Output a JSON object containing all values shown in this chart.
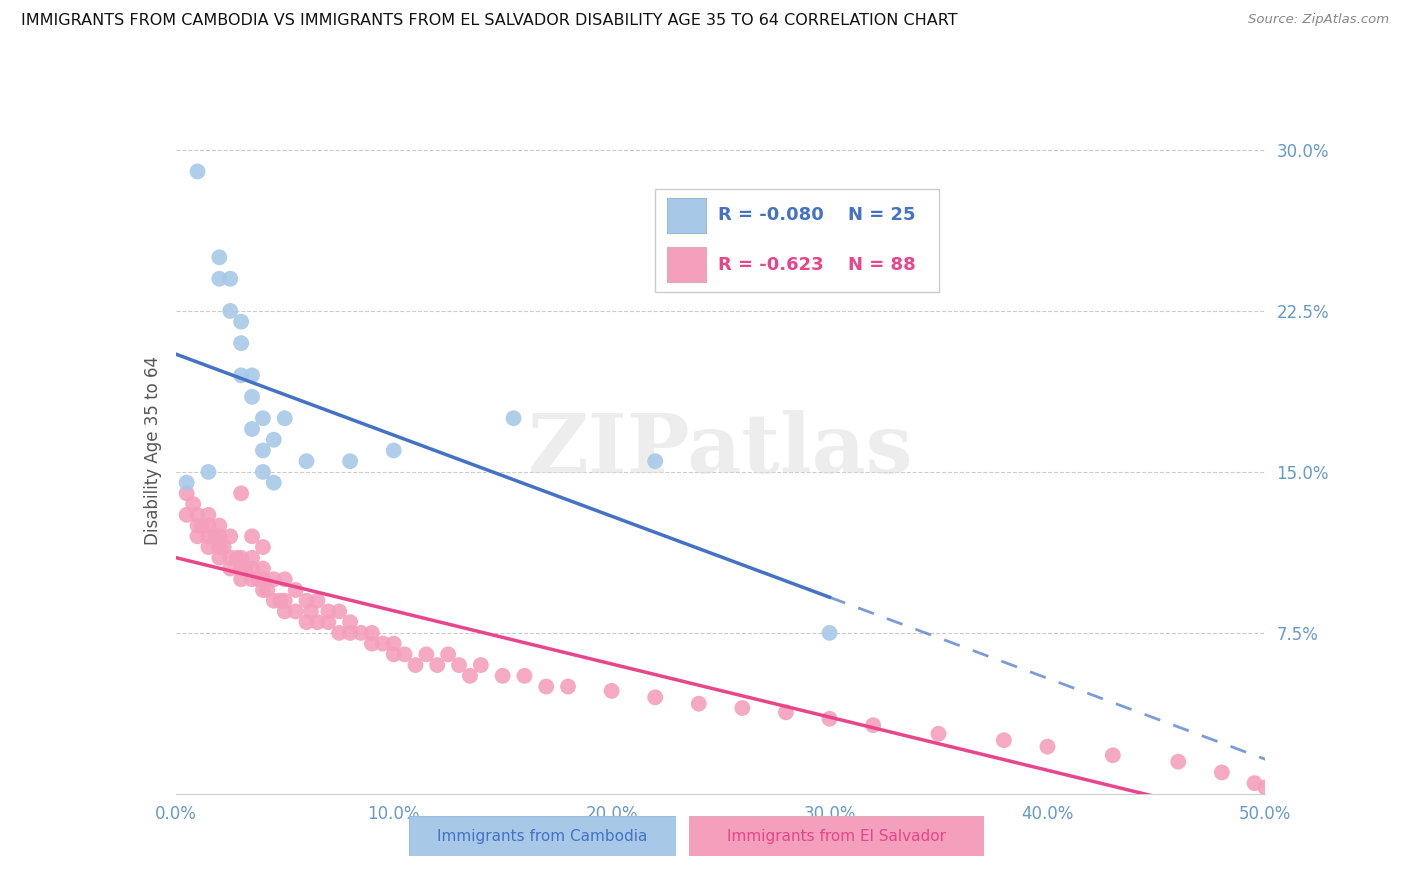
{
  "title": "IMMIGRANTS FROM CAMBODIA VS IMMIGRANTS FROM EL SALVADOR DISABILITY AGE 35 TO 64 CORRELATION CHART",
  "source": "Source: ZipAtlas.com",
  "ylabel": "Disability Age 35 to 64",
  "xlim": [
    0.0,
    0.5
  ],
  "ylim": [
    0.0,
    0.32
  ],
  "xticks": [
    0.0,
    0.1,
    0.2,
    0.3,
    0.4,
    0.5
  ],
  "xticklabels": [
    "0.0%",
    "10.0%",
    "20.0%",
    "30.0%",
    "40.0%",
    "50.0%"
  ],
  "yticks_right": [
    0.075,
    0.15,
    0.225,
    0.3
  ],
  "ytick_labels_right": [
    "7.5%",
    "15.0%",
    "22.5%",
    "30.0%"
  ],
  "legend_R1": "-0.080",
  "legend_N1": "25",
  "legend_R2": "-0.623",
  "legend_N2": "88",
  "color_cambodia": "#a8c8e8",
  "color_el_salvador": "#f4a0bc",
  "color_line_cambodia": "#4472c4",
  "color_line_el_salvador": "#e8458a",
  "color_axis": "#6699cc",
  "watermark": "ZIPatlas",
  "cambodia_x": [
    0.005,
    0.01,
    0.015,
    0.02,
    0.02,
    0.025,
    0.025,
    0.03,
    0.03,
    0.03,
    0.035,
    0.035,
    0.035,
    0.04,
    0.04,
    0.04,
    0.045,
    0.045,
    0.05,
    0.06,
    0.08,
    0.1,
    0.155,
    0.22,
    0.3
  ],
  "cambodia_y": [
    0.145,
    0.29,
    0.15,
    0.24,
    0.25,
    0.225,
    0.24,
    0.195,
    0.21,
    0.22,
    0.17,
    0.185,
    0.195,
    0.15,
    0.16,
    0.175,
    0.145,
    0.165,
    0.175,
    0.155,
    0.155,
    0.16,
    0.175,
    0.155,
    0.075
  ],
  "el_salvador_x": [
    0.005,
    0.005,
    0.008,
    0.01,
    0.01,
    0.01,
    0.012,
    0.015,
    0.015,
    0.015,
    0.015,
    0.018,
    0.02,
    0.02,
    0.02,
    0.02,
    0.022,
    0.025,
    0.025,
    0.025,
    0.028,
    0.03,
    0.03,
    0.03,
    0.03,
    0.032,
    0.035,
    0.035,
    0.035,
    0.035,
    0.038,
    0.04,
    0.04,
    0.04,
    0.04,
    0.042,
    0.045,
    0.045,
    0.048,
    0.05,
    0.05,
    0.05,
    0.055,
    0.055,
    0.06,
    0.06,
    0.062,
    0.065,
    0.065,
    0.07,
    0.07,
    0.075,
    0.075,
    0.08,
    0.08,
    0.085,
    0.09,
    0.09,
    0.095,
    0.1,
    0.1,
    0.105,
    0.11,
    0.115,
    0.12,
    0.125,
    0.13,
    0.135,
    0.14,
    0.15,
    0.16,
    0.17,
    0.18,
    0.2,
    0.22,
    0.24,
    0.26,
    0.28,
    0.3,
    0.32,
    0.35,
    0.38,
    0.4,
    0.43,
    0.46,
    0.48,
    0.495,
    0.5
  ],
  "el_salvador_y": [
    0.13,
    0.14,
    0.135,
    0.12,
    0.125,
    0.13,
    0.125,
    0.115,
    0.12,
    0.125,
    0.13,
    0.12,
    0.11,
    0.115,
    0.12,
    0.125,
    0.115,
    0.105,
    0.11,
    0.12,
    0.11,
    0.1,
    0.105,
    0.11,
    0.14,
    0.105,
    0.1,
    0.105,
    0.11,
    0.12,
    0.1,
    0.095,
    0.1,
    0.105,
    0.115,
    0.095,
    0.09,
    0.1,
    0.09,
    0.085,
    0.09,
    0.1,
    0.085,
    0.095,
    0.08,
    0.09,
    0.085,
    0.08,
    0.09,
    0.08,
    0.085,
    0.075,
    0.085,
    0.075,
    0.08,
    0.075,
    0.07,
    0.075,
    0.07,
    0.065,
    0.07,
    0.065,
    0.06,
    0.065,
    0.06,
    0.065,
    0.06,
    0.055,
    0.06,
    0.055,
    0.055,
    0.05,
    0.05,
    0.048,
    0.045,
    0.042,
    0.04,
    0.038,
    0.035,
    0.032,
    0.028,
    0.025,
    0.022,
    0.018,
    0.015,
    0.01,
    0.005,
    0.003
  ]
}
